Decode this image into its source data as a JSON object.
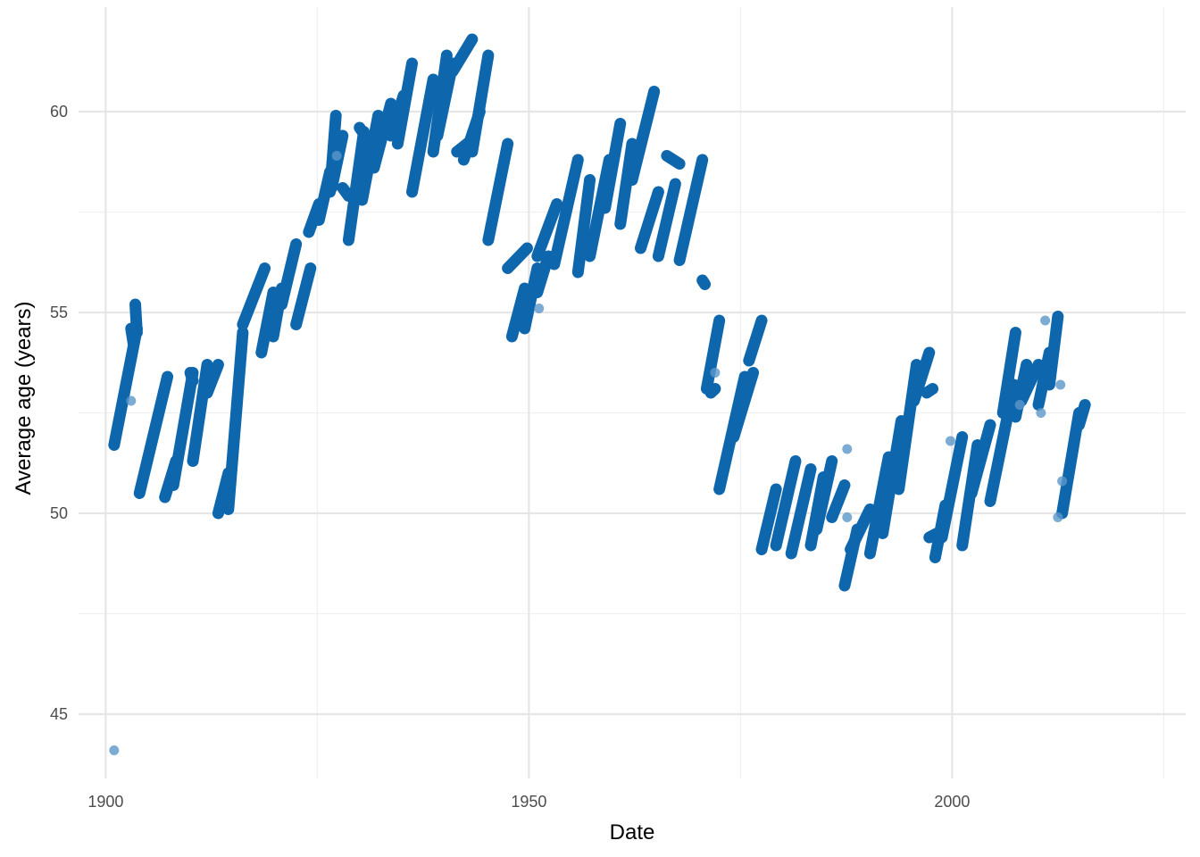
{
  "chart_data": {
    "type": "scatter",
    "title": "",
    "xlabel": "Date",
    "ylabel": "Average age (years)",
    "xlim": [
      1896.8,
      2027.6
    ],
    "ylim": [
      43.4,
      62.6
    ],
    "x_ticks": [
      1900,
      1950,
      2000
    ],
    "x_tick_labels": [
      "1900",
      "1950",
      "2000"
    ],
    "y_ticks": [
      45,
      50,
      55,
      60
    ],
    "y_tick_labels": [
      "45",
      "50",
      "55",
      "60"
    ],
    "x_minor_ticks": [
      1925,
      1975,
      2025
    ],
    "y_minor_ticks": [
      47.5,
      52.5,
      57.5
    ],
    "grid": true,
    "legend": "none",
    "colors": {
      "dense_points": "#0e67ad",
      "sparse_points": "#5b97c9",
      "grid": "#e6e6e6"
    },
    "dense_segments": [
      [
        1901.0,
        51.7,
        1903.7,
        54.6
      ],
      [
        1903.0,
        54.6,
        1903.3,
        54.2
      ],
      [
        1903.5,
        55.2,
        1903.7,
        54.5
      ],
      [
        1904.0,
        50.5,
        1907.3,
        53.4
      ],
      [
        1907.0,
        50.4,
        1908.3,
        51.3
      ],
      [
        1908.0,
        50.7,
        1910.3,
        53.5
      ],
      [
        1910.0,
        53.5,
        1910.3,
        53.3
      ],
      [
        1910.3,
        51.3,
        1912.0,
        53.7
      ],
      [
        1912.0,
        53.0,
        1913.3,
        53.7
      ],
      [
        1913.3,
        50.0,
        1914.5,
        51.0
      ],
      [
        1914.5,
        50.1,
        1916.2,
        54.5
      ],
      [
        1916.2,
        54.7,
        1918.8,
        56.1
      ],
      [
        1918.4,
        54.0,
        1919.8,
        55.5
      ],
      [
        1919.8,
        54.4,
        1920.8,
        55.6
      ],
      [
        1920.8,
        55.2,
        1922.5,
        56.7
      ],
      [
        1922.5,
        54.7,
        1924.2,
        56.1
      ],
      [
        1924.0,
        57.0,
        1925.2,
        57.7
      ],
      [
        1925.2,
        57.3,
        1926.5,
        58.5
      ],
      [
        1926.5,
        58.0,
        1927.2,
        59.9
      ],
      [
        1926.7,
        58.1,
        1928.0,
        59.4
      ],
      [
        1928.0,
        58.1,
        1928.7,
        57.9
      ],
      [
        1928.7,
        56.8,
        1930.5,
        59.5
      ],
      [
        1930.0,
        59.6,
        1931.3,
        59.2
      ],
      [
        1930.3,
        57.8,
        1932.2,
        59.9
      ],
      [
        1931.7,
        58.6,
        1933.7,
        60.2
      ],
      [
        1933.7,
        59.4,
        1935.2,
        60.4
      ],
      [
        1934.5,
        59.2,
        1936.2,
        61.2
      ],
      [
        1936.2,
        58.0,
        1938.7,
        60.8
      ],
      [
        1938.7,
        59.0,
        1940.3,
        61.4
      ],
      [
        1939.2,
        59.4,
        1941.0,
        61.2
      ],
      [
        1941.0,
        61.0,
        1943.3,
        61.8
      ],
      [
        1941.5,
        59.0,
        1943.3,
        59.3
      ],
      [
        1942.3,
        58.8,
        1944.2,
        60.0
      ],
      [
        1943.3,
        59.0,
        1945.2,
        61.4
      ],
      [
        1945.2,
        56.8,
        1947.5,
        59.2
      ],
      [
        1947.5,
        56.1,
        1949.8,
        56.6
      ],
      [
        1948.0,
        54.4,
        1949.5,
        55.6
      ],
      [
        1949.5,
        54.6,
        1951.0,
        56.1
      ],
      [
        1951.0,
        55.5,
        1952.3,
        56.4
      ],
      [
        1951.0,
        56.4,
        1953.3,
        57.7
      ],
      [
        1953.0,
        56.2,
        1955.8,
        58.8
      ],
      [
        1955.8,
        56.0,
        1957.2,
        58.3
      ],
      [
        1957.2,
        56.4,
        1959.5,
        58.8
      ],
      [
        1959.0,
        57.6,
        1960.8,
        59.7
      ],
      [
        1960.8,
        57.2,
        1962.2,
        59.2
      ],
      [
        1962.2,
        58.3,
        1964.8,
        60.5
      ],
      [
        1963.2,
        56.6,
        1965.3,
        58.0
      ],
      [
        1965.3,
        56.4,
        1967.3,
        58.2
      ],
      [
        1966.3,
        58.9,
        1967.8,
        58.7
      ],
      [
        1967.8,
        56.3,
        1970.5,
        58.8
      ],
      [
        1970.5,
        55.8,
        1970.8,
        55.7
      ],
      [
        1971.0,
        53.1,
        1972.5,
        54.8
      ],
      [
        1971.5,
        53.0,
        1972.0,
        53.1
      ],
      [
        1972.5,
        50.6,
        1975.5,
        53.4
      ],
      [
        1974.2,
        51.9,
        1976.5,
        53.5
      ],
      [
        1976.0,
        53.8,
        1977.5,
        54.8
      ],
      [
        1977.5,
        49.1,
        1979.2,
        50.6
      ],
      [
        1979.2,
        49.2,
        1981.5,
        51.3
      ],
      [
        1981.0,
        49.0,
        1983.3,
        51.1
      ],
      [
        1983.3,
        49.2,
        1984.8,
        50.9
      ],
      [
        1984.0,
        49.6,
        1985.8,
        51.3
      ],
      [
        1985.8,
        49.9,
        1987.3,
        50.7
      ],
      [
        1987.3,
        48.2,
        1988.8,
        49.6
      ],
      [
        1988.0,
        49.1,
        1990.3,
        50.1
      ],
      [
        1990.3,
        49.0,
        1992.5,
        51.4
      ],
      [
        1991.8,
        49.5,
        1994.0,
        52.3
      ],
      [
        1993.7,
        50.6,
        1995.8,
        53.7
      ],
      [
        1995.5,
        52.8,
        1997.3,
        54.0
      ],
      [
        1997.0,
        53.0,
        1997.7,
        53.1
      ],
      [
        1997.3,
        49.4,
        1998.2,
        49.5
      ],
      [
        1998.0,
        48.9,
        1999.2,
        50.2
      ],
      [
        1998.8,
        49.4,
        2001.2,
        51.9
      ],
      [
        2001.2,
        49.2,
        2003.0,
        51.7
      ],
      [
        2002.3,
        50.5,
        2004.5,
        52.2
      ],
      [
        2004.5,
        50.3,
        2007.3,
        53.2
      ],
      [
        2006.0,
        52.5,
        2007.5,
        54.5
      ],
      [
        2007.5,
        52.4,
        2008.8,
        53.7
      ],
      [
        2008.2,
        52.8,
        2010.2,
        53.7
      ],
      [
        2010.2,
        52.7,
        2011.5,
        54.0
      ],
      [
        2011.5,
        53.2,
        2012.5,
        54.9
      ],
      [
        2013.0,
        50.0,
        2015.0,
        52.5
      ],
      [
        2015.0,
        52.2,
        2015.7,
        52.7
      ]
    ],
    "sparse_points": [
      [
        1901.0,
        44.1
      ],
      [
        1903.0,
        52.8
      ],
      [
        1927.3,
        58.9
      ],
      [
        1951.2,
        55.1
      ],
      [
        1972.0,
        53.5
      ],
      [
        1987.6,
        51.6
      ],
      [
        1987.6,
        49.9
      ],
      [
        1999.8,
        51.8
      ],
      [
        2008.0,
        52.7
      ],
      [
        2010.5,
        52.5
      ],
      [
        2011.0,
        54.8
      ],
      [
        2012.5,
        49.9
      ],
      [
        2013.0,
        50.8
      ],
      [
        2012.8,
        53.2
      ]
    ]
  }
}
